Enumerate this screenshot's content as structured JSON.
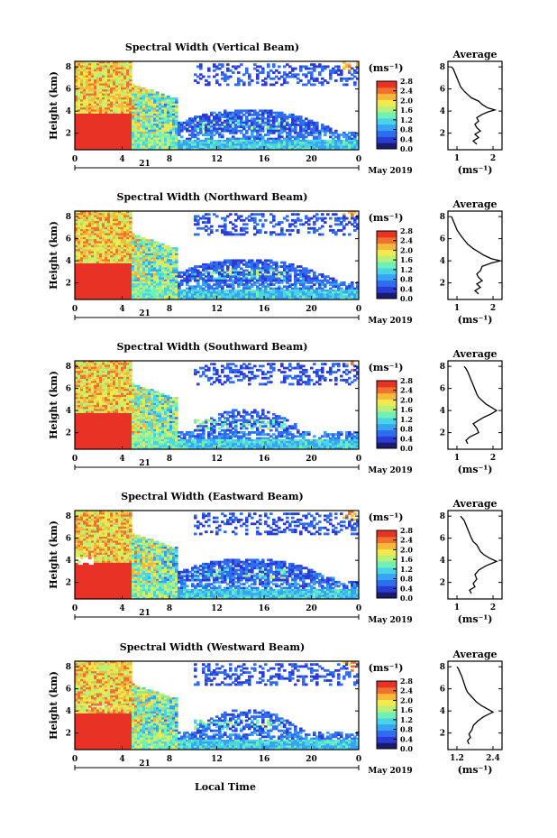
{
  "common": {
    "ylabel": "Height (km)",
    "xlabel": "Local Time",
    "date_label": "May 2019",
    "day_label": "21",
    "cb_unit": "(ms⁻¹)",
    "avg_title": "Average",
    "avg_unit": "(ms⁻¹)",
    "height_ticks": [
      "2",
      "4",
      "6",
      "8"
    ],
    "time_ticks": [
      "0",
      "4",
      "8",
      "12",
      "16",
      "20",
      "0"
    ],
    "cb_ticks": [
      "0.0",
      "0.4",
      "0.8",
      "1.2",
      "1.6",
      "2.0",
      "2.4",
      "2.8"
    ]
  },
  "colorbar": {
    "colors": [
      "#1a1a6e",
      "#2b3bd6",
      "#2f6df0",
      "#36a3f5",
      "#48d4e6",
      "#6ff0b6",
      "#b8f07a",
      "#f2e94c",
      "#f7b93a",
      "#f0722e",
      "#e83226"
    ]
  },
  "panels": [
    {
      "title": "Spectral Width (Vertical Beam)",
      "avg_xticks": [
        "1",
        "2"
      ],
      "avg_profile": {
        "x": [
          1.55,
          1.45,
          1.6,
          1.5,
          1.65,
          1.55,
          1.5,
          1.6,
          1.55,
          1.7,
          1.85,
          2.05,
          1.85,
          1.7,
          1.6,
          1.4,
          1.3,
          1.2,
          1.1,
          1.05,
          1.0,
          0.95,
          0.9,
          0.85
        ],
        "y": [
          1.0,
          1.3,
          1.6,
          1.9,
          2.2,
          2.5,
          2.8,
          3.1,
          3.4,
          3.7,
          3.9,
          4.1,
          4.3,
          4.6,
          4.9,
          5.2,
          5.5,
          5.8,
          6.2,
          6.6,
          7.0,
          7.4,
          7.8,
          8.0
        ]
      }
    },
    {
      "title": "Spectral Width (Northward Beam)",
      "avg_xticks": [
        "1",
        "2"
      ],
      "avg_profile": {
        "x": [
          1.6,
          1.5,
          1.65,
          1.55,
          1.7,
          1.6,
          1.55,
          1.65,
          1.7,
          1.95,
          2.2,
          1.95,
          1.75,
          1.6,
          1.45,
          1.3,
          1.2,
          1.1,
          1.0,
          0.95,
          0.9,
          0.85
        ],
        "y": [
          1.0,
          1.3,
          1.6,
          1.9,
          2.2,
          2.5,
          2.8,
          3.1,
          3.5,
          3.8,
          4.0,
          4.2,
          4.5,
          4.8,
          5.1,
          5.5,
          5.9,
          6.3,
          6.8,
          7.2,
          7.6,
          8.0
        ]
      }
    },
    {
      "title": "Spectral Width (Southward Beam)",
      "avg_xticks": [
        "1",
        "2"
      ],
      "avg_profile": {
        "x": [
          1.3,
          1.25,
          1.35,
          1.6,
          1.55,
          1.45,
          1.6,
          1.75,
          1.95,
          2.1,
          1.95,
          1.8,
          1.7,
          1.6,
          1.55,
          1.5,
          1.45,
          1.4,
          1.35,
          1.3,
          1.25,
          1.2
        ],
        "y": [
          1.0,
          1.3,
          1.6,
          2.0,
          2.4,
          2.8,
          3.1,
          3.4,
          3.7,
          4.0,
          4.3,
          4.6,
          4.9,
          5.2,
          5.5,
          5.9,
          6.3,
          6.7,
          7.1,
          7.5,
          7.8,
          8.0
        ]
      }
    },
    {
      "title": "Spectral Width (Eastward Beam)",
      "avg_xticks": [
        "1",
        "2"
      ],
      "avg_profile": {
        "x": [
          1.4,
          1.35,
          1.5,
          1.45,
          1.55,
          1.5,
          1.6,
          1.8,
          2.1,
          1.9,
          1.75,
          1.65,
          1.6,
          1.55,
          1.45,
          1.4,
          1.35,
          1.3,
          1.25,
          1.2,
          1.15,
          1.1
        ],
        "y": [
          1.0,
          1.3,
          1.6,
          1.9,
          2.3,
          2.7,
          3.1,
          3.5,
          3.9,
          4.2,
          4.5,
          4.8,
          5.1,
          5.4,
          5.7,
          6.0,
          6.4,
          6.8,
          7.2,
          7.6,
          7.8,
          8.0
        ]
      }
    },
    {
      "title": "Spectral Width (Westward Beam)",
      "avg_xticks": [
        "1.2",
        "2.4"
      ],
      "avg_profile": {
        "x": [
          1.6,
          1.55,
          1.65,
          1.6,
          1.7,
          1.75,
          1.9,
          2.1,
          2.4,
          2.2,
          2.0,
          1.85,
          1.75,
          1.65,
          1.55,
          1.5,
          1.45,
          1.4,
          1.35,
          1.3,
          1.25,
          1.2
        ],
        "y": [
          1.0,
          1.3,
          1.6,
          1.9,
          2.3,
          2.7,
          3.1,
          3.5,
          3.9,
          4.2,
          4.5,
          4.8,
          5.1,
          5.4,
          5.7,
          6.0,
          6.4,
          6.8,
          7.2,
          7.5,
          7.8,
          8.0
        ]
      }
    }
  ],
  "chart_data": [
    {
      "type": "heatmap",
      "title": "Spectral Width (Vertical Beam)",
      "xlabel": "",
      "ylabel": "Height (km)",
      "x_ticks": [
        "0",
        "4",
        "8",
        "12",
        "16",
        "20",
        "0"
      ],
      "y_range": [
        0.5,
        8.5
      ],
      "colorbar_range": [
        0.0,
        2.8
      ],
      "colorbar_label": "(ms⁻¹)"
    },
    {
      "type": "line",
      "title": "Average",
      "x_ticks": [
        "1",
        "2"
      ],
      "xlabel": "(ms⁻¹)"
    },
    {
      "type": "heatmap",
      "title": "Spectral Width (Northward Beam)",
      "xlabel": "",
      "ylabel": "Height (km)",
      "x_ticks": [
        "0",
        "4",
        "8",
        "12",
        "16",
        "20",
        "0"
      ],
      "y_range": [
        0.5,
        8.5
      ],
      "colorbar_range": [
        0.0,
        2.8
      ],
      "colorbar_label": "(ms⁻¹)"
    },
    {
      "type": "line",
      "title": "Average",
      "x_ticks": [
        "1",
        "2"
      ],
      "xlabel": "(ms⁻¹)"
    },
    {
      "type": "heatmap",
      "title": "Spectral Width (Southward Beam)",
      "xlabel": "",
      "ylabel": "Height (km)",
      "x_ticks": [
        "0",
        "4",
        "8",
        "12",
        "16",
        "20",
        "0"
      ],
      "y_range": [
        0.5,
        8.5
      ],
      "colorbar_range": [
        0.0,
        2.8
      ],
      "colorbar_label": "(ms⁻¹)"
    },
    {
      "type": "line",
      "title": "Average",
      "x_ticks": [
        "1",
        "2"
      ],
      "xlabel": "(ms⁻¹)"
    },
    {
      "type": "heatmap",
      "title": "Spectral Width (Eastward Beam)",
      "xlabel": "",
      "ylabel": "Height (km)",
      "x_ticks": [
        "0",
        "4",
        "8",
        "12",
        "16",
        "20",
        "0"
      ],
      "y_range": [
        0.5,
        8.5
      ],
      "colorbar_range": [
        0.0,
        2.8
      ],
      "colorbar_label": "(ms⁻¹)"
    },
    {
      "type": "line",
      "title": "Average",
      "x_ticks": [
        "1",
        "2"
      ],
      "xlabel": "(ms⁻¹)"
    },
    {
      "type": "heatmap",
      "title": "Spectral Width (Westward Beam)",
      "xlabel": "Local Time",
      "ylabel": "Height (km)",
      "x_ticks": [
        "0",
        "4",
        "8",
        "12",
        "16",
        "20",
        "0"
      ],
      "y_range": [
        0.5,
        8.5
      ],
      "colorbar_range": [
        0.0,
        2.8
      ],
      "colorbar_label": "(ms⁻¹)"
    },
    {
      "type": "line",
      "title": "Average",
      "x_ticks": [
        "1.2",
        "2.4"
      ],
      "xlabel": "(ms⁻¹)"
    }
  ]
}
